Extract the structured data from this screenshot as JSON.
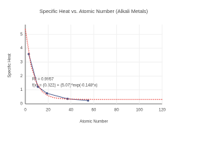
{
  "chart_data": {
    "type": "scatter",
    "title": "Specific Heat vs. Atomic Number (Alkali Metals)",
    "x_label": "Atomic Number",
    "y_label": "Specific Heat",
    "xlim": [
      0,
      120
    ],
    "xticks": [
      0,
      20,
      40,
      60,
      80,
      100,
      120
    ],
    "ylim": [
      0,
      5.7
    ],
    "yticks": [
      0,
      1,
      2,
      3,
      4,
      5
    ],
    "grid": true,
    "series": [
      {
        "color": "#4a5a8c",
        "mode": "lines+markers",
        "x": [
          3,
          11,
          19,
          37,
          55
        ],
        "values": [
          3.58,
          1.23,
          0.757,
          0.363,
          0.242
        ]
      },
      {
        "color": "#e8342e",
        "mode": "dotted",
        "x": [
          0,
          5,
          10,
          15,
          20,
          25,
          30,
          40,
          50,
          60,
          80,
          100,
          120
        ],
        "values": [
          5.39,
          2.74,
          1.48,
          0.87,
          0.585,
          0.447,
          0.382,
          0.336,
          0.325,
          0.32,
          0.32,
          0.32,
          0.32
        ]
      }
    ],
    "annotations": [
      "R² = 0.9957",
      "f(x) = (0.322) + (5.07)*exp(-0.148*x)"
    ]
  }
}
